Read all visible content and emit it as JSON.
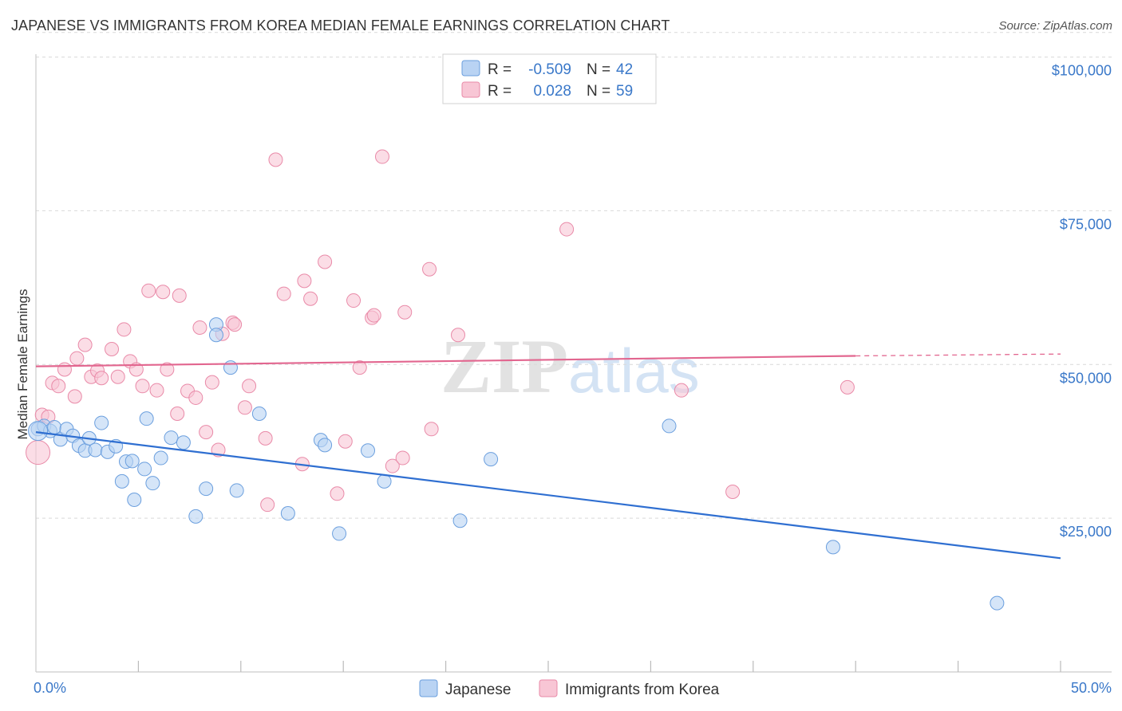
{
  "title": "JAPANESE VS IMMIGRANTS FROM KOREA MEDIAN FEMALE EARNINGS CORRELATION CHART",
  "source": "Source: ZipAtlas.com",
  "watermark": {
    "zip": "ZIP",
    "atlas": "atlas"
  },
  "colors": {
    "japanese_fill": "#b9d3f3",
    "japanese_stroke": "#6b9fde",
    "japanese_line": "#2f6fd1",
    "korea_fill": "#f8c6d5",
    "korea_stroke": "#e98aa8",
    "korea_line": "#e2668f",
    "axis_text": "#3a78c9",
    "grid": "#d9d9d9"
  },
  "legend": {
    "rows": [
      {
        "r_label": "R =",
        "r_value": "-0.509",
        "n_label": "N =",
        "n_value": "42"
      },
      {
        "r_label": "R =",
        "r_value": "0.028",
        "n_label": "N =",
        "n_value": "59"
      }
    ]
  },
  "chart_data": {
    "type": "scatter",
    "xlabel": "",
    "ylabel": "Median Female Earnings",
    "xlim": [
      0,
      50
    ],
    "ylim": [
      0,
      105000
    ],
    "x_tick_labels": [
      "0.0%",
      "50.0%"
    ],
    "y_ticks": [
      25000,
      50000,
      75000,
      100000
    ],
    "y_tick_labels": [
      "$25,000",
      "$50,000",
      "$75,000",
      "$100,000"
    ],
    "grid": true,
    "series": [
      {
        "name": "Japanese",
        "points": [
          [
            0.1,
            39500
          ],
          [
            0.4,
            40000
          ],
          [
            0.7,
            39200
          ],
          [
            0.9,
            39800
          ],
          [
            1.2,
            37800
          ],
          [
            1.5,
            39500
          ],
          [
            1.8,
            38400
          ],
          [
            2.1,
            36800
          ],
          [
            2.4,
            36000
          ],
          [
            2.6,
            38000
          ],
          [
            2.9,
            36100
          ],
          [
            3.2,
            40500
          ],
          [
            3.5,
            35800
          ],
          [
            3.9,
            36700
          ],
          [
            4.2,
            31000
          ],
          [
            4.4,
            34200
          ],
          [
            4.7,
            34300
          ],
          [
            4.8,
            28000
          ],
          [
            5.3,
            33000
          ],
          [
            5.4,
            41200
          ],
          [
            5.7,
            30700
          ],
          [
            6.1,
            34800
          ],
          [
            6.6,
            38100
          ],
          [
            7.2,
            37300
          ],
          [
            7.8,
            25300
          ],
          [
            8.3,
            29800
          ],
          [
            8.8,
            56500
          ],
          [
            8.8,
            54800
          ],
          [
            9.5,
            49500
          ],
          [
            9.8,
            29500
          ],
          [
            10.9,
            42000
          ],
          [
            12.3,
            25800
          ],
          [
            13.9,
            37700
          ],
          [
            14.1,
            36900
          ],
          [
            14.8,
            22500
          ],
          [
            16.2,
            36000
          ],
          [
            17.0,
            31000
          ],
          [
            20.7,
            24600
          ],
          [
            22.2,
            34600
          ],
          [
            30.9,
            40000
          ],
          [
            38.9,
            20300
          ],
          [
            46.9,
            11200
          ]
        ],
        "trend": {
          "x0": 0,
          "y0": 39000,
          "x1": 50,
          "y1": 18500
        }
      },
      {
        "name": "Immigrants from Korea",
        "points": [
          [
            0.3,
            41800
          ],
          [
            0.6,
            41500
          ],
          [
            0.8,
            47000
          ],
          [
            1.1,
            46500
          ],
          [
            1.4,
            49200
          ],
          [
            2.0,
            51000
          ],
          [
            1.9,
            44800
          ],
          [
            2.4,
            53200
          ],
          [
            2.7,
            48000
          ],
          [
            3.0,
            49000
          ],
          [
            3.2,
            47800
          ],
          [
            3.7,
            52500
          ],
          [
            4.0,
            48000
          ],
          [
            4.3,
            55700
          ],
          [
            4.6,
            50500
          ],
          [
            4.9,
            49200
          ],
          [
            5.2,
            46500
          ],
          [
            5.5,
            62000
          ],
          [
            5.9,
            45800
          ],
          [
            6.2,
            61800
          ],
          [
            6.4,
            49200
          ],
          [
            6.9,
            42000
          ],
          [
            7.0,
            61200
          ],
          [
            7.4,
            45700
          ],
          [
            7.8,
            44600
          ],
          [
            8.0,
            56000
          ],
          [
            8.3,
            39000
          ],
          [
            8.6,
            47100
          ],
          [
            8.9,
            36100
          ],
          [
            9.1,
            55000
          ],
          [
            9.6,
            56800
          ],
          [
            9.7,
            56500
          ],
          [
            10.4,
            46500
          ],
          [
            10.2,
            43000
          ],
          [
            11.2,
            38000
          ],
          [
            11.3,
            27200
          ],
          [
            11.7,
            83300
          ],
          [
            12.1,
            61500
          ],
          [
            13.0,
            33800
          ],
          [
            13.1,
            63600
          ],
          [
            13.4,
            60700
          ],
          [
            14.1,
            66700
          ],
          [
            14.7,
            29000
          ],
          [
            15.1,
            37500
          ],
          [
            15.5,
            60400
          ],
          [
            15.8,
            49500
          ],
          [
            16.4,
            57600
          ],
          [
            16.5,
            58000
          ],
          [
            16.9,
            83800
          ],
          [
            17.4,
            33500
          ],
          [
            17.9,
            34800
          ],
          [
            18.0,
            58500
          ],
          [
            19.2,
            65500
          ],
          [
            19.3,
            39500
          ],
          [
            20.6,
            54800
          ],
          [
            25.9,
            72000
          ],
          [
            31.5,
            45800
          ],
          [
            34.0,
            29300
          ],
          [
            39.6,
            46300
          ]
        ],
        "trend": {
          "x0": 0,
          "y0": 49700,
          "x1": 40,
          "y1": 51400,
          "dash_to_x": 50,
          "dash_to_y": 51700
        }
      }
    ]
  },
  "bottom_legend": [
    "Japanese",
    "Immigrants from Korea"
  ]
}
